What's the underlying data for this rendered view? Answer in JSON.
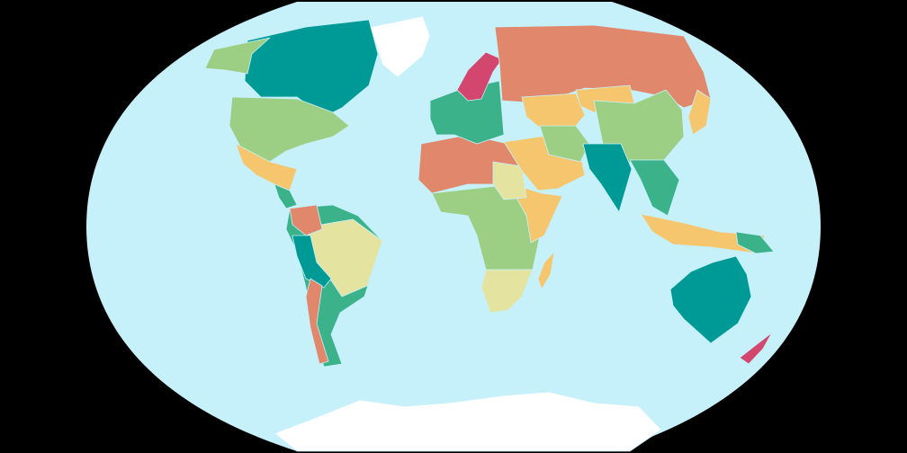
{
  "map": {
    "type": "world-choropleth",
    "projection": "winkel-tripel",
    "background_color": "#000000",
    "ocean_color": "#c6f1fb",
    "ice_color": "#ffffff",
    "palette": [
      "#009a96",
      "#3bb28a",
      "#9ccf84",
      "#e4e4a0",
      "#f6c66e",
      "#e0876c",
      "#d3476e"
    ],
    "regions": [
      {
        "id": "canada",
        "color": "#009a96"
      },
      {
        "id": "alaska",
        "color": "#9ccf84"
      },
      {
        "id": "greenland",
        "color": "#ffffff"
      },
      {
        "id": "usa",
        "color": "#9ccf84"
      },
      {
        "id": "mexico",
        "color": "#f6c66e"
      },
      {
        "id": "central-america",
        "color": "#3bb28a"
      },
      {
        "id": "south-america",
        "color": "#3bb28a"
      },
      {
        "id": "brazil",
        "color": "#e4e4a0"
      },
      {
        "id": "colombia",
        "color": "#e0876c"
      },
      {
        "id": "peru-bolivia",
        "color": "#009a96"
      },
      {
        "id": "chile",
        "color": "#e0876c"
      },
      {
        "id": "africa-north",
        "color": "#e0876c"
      },
      {
        "id": "africa-central",
        "color": "#9ccf84"
      },
      {
        "id": "africa-east",
        "color": "#f6c66e"
      },
      {
        "id": "sudan",
        "color": "#e4e4a0"
      },
      {
        "id": "south-africa",
        "color": "#e4e4a0"
      },
      {
        "id": "madagascar",
        "color": "#f6c66e"
      },
      {
        "id": "europe",
        "color": "#3bb28a"
      },
      {
        "id": "scandinavia",
        "color": "#d3476e"
      },
      {
        "id": "russia",
        "color": "#e0876c"
      },
      {
        "id": "kazakhstan",
        "color": "#f6c66e"
      },
      {
        "id": "mongolia",
        "color": "#f6c66e"
      },
      {
        "id": "china",
        "color": "#9ccf84"
      },
      {
        "id": "middle-east",
        "color": "#f6c66e"
      },
      {
        "id": "iran",
        "color": "#9ccf84"
      },
      {
        "id": "india",
        "color": "#009a96"
      },
      {
        "id": "southeast-asia",
        "color": "#3bb28a"
      },
      {
        "id": "japan",
        "color": "#f6c66e"
      },
      {
        "id": "indonesia",
        "color": "#f6c66e"
      },
      {
        "id": "papua",
        "color": "#3bb28a"
      },
      {
        "id": "australia",
        "color": "#009a96"
      },
      {
        "id": "new-zealand",
        "color": "#d3476e"
      },
      {
        "id": "antarctica",
        "color": "#ffffff"
      }
    ]
  }
}
